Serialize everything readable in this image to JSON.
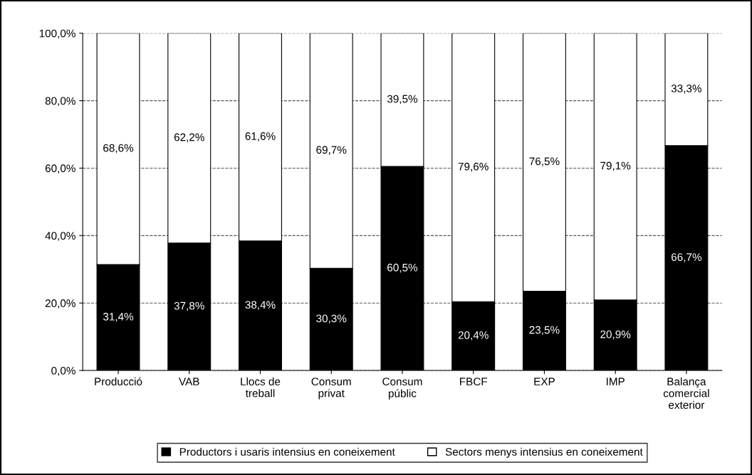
{
  "chart_data": {
    "type": "bar",
    "stacked": true,
    "categories": [
      "Producció",
      "VAB",
      "Llocs de\ntreball",
      "Consum\nprivat",
      "Consum\npúblic",
      "FBCF",
      "EXP",
      "IMP",
      "Balança\ncomercial\nexterior"
    ],
    "series": [
      {
        "name": "Productors i usaris intensius en coneixement",
        "color": "#000000",
        "values": [
          31.4,
          37.8,
          38.4,
          30.3,
          60.5,
          20.4,
          23.5,
          20.9,
          66.7
        ],
        "value_labels": [
          "31,4%",
          "37,8%",
          "38,4%",
          "30,3%",
          "60,5%",
          "20,4%",
          "23,5%",
          "20,9%",
          "66,7%"
        ]
      },
      {
        "name": "Sectors menys intensius en coneixement",
        "color": "#ffffff",
        "values": [
          68.6,
          62.2,
          61.6,
          69.7,
          39.5,
          79.6,
          76.5,
          79.1,
          33.3
        ],
        "value_labels": [
          "68,6%",
          "62,2%",
          "61,6%",
          "69,7%",
          "39,5%",
          "79,6%",
          "76,5%",
          "79,1%",
          "33,3%"
        ]
      }
    ],
    "ylim": [
      0,
      100
    ],
    "yticks": [
      {
        "value": 0,
        "label": "0,0%"
      },
      {
        "value": 20,
        "label": "20,0%"
      },
      {
        "value": 40,
        "label": "40,0%"
      },
      {
        "value": 60,
        "label": "60,0%"
      },
      {
        "value": 80,
        "label": "80,0%"
      },
      {
        "value": 100,
        "label": "100,0%"
      }
    ],
    "grid": "y",
    "legend": "bottom"
  }
}
